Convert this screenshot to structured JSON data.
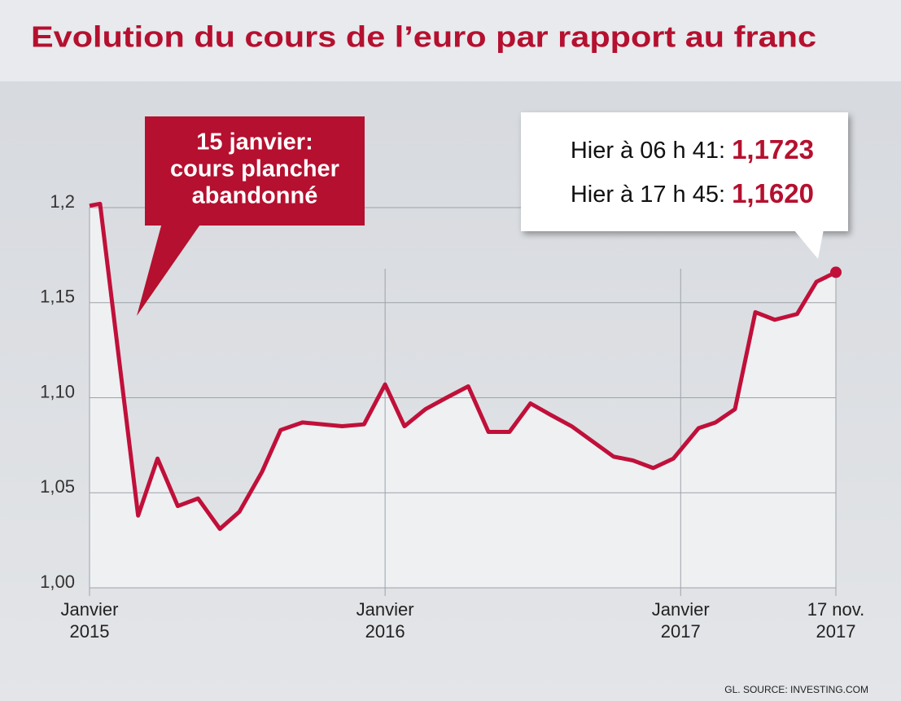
{
  "chart_data": {
    "type": "line",
    "title": "Evolution du cours de l’euro par rapport au franc",
    "annotation": [
      "15 janvier:",
      "cours plancher",
      "abandonné"
    ],
    "info": [
      {
        "label": "Hier à 06 h 41:",
        "value": "1,1723"
      },
      {
        "label": "Hier à 17 h 45:",
        "value": "1,1620"
      }
    ],
    "source": "GL. SOURCE: INVESTING.COM",
    "x": [
      "2015-01-01",
      "2015-01-14",
      "2015-03-02",
      "2015-03-26",
      "2015-04-20",
      "2015-05-15",
      "2015-06-11",
      "2015-07-05",
      "2015-08-02",
      "2015-08-25",
      "2015-09-21",
      "2015-11-09",
      "2015-12-06",
      "2016-01-01",
      "2016-01-25",
      "2016-02-20",
      "2016-03-17",
      "2016-04-13",
      "2016-05-08",
      "2016-06-03",
      "2016-06-29",
      "2016-07-24",
      "2016-08-19",
      "2016-10-10",
      "2016-11-03",
      "2016-11-28",
      "2016-12-23",
      "2017-02-07",
      "2017-03-14",
      "2017-04-23",
      "2017-06-04",
      "2017-07-14",
      "2017-08-29",
      "2017-10-08",
      "2017-11-17"
    ],
    "series": [
      {
        "color": "#c0103a",
        "values": [
          1.201,
          1.202,
          1.038,
          1.068,
          1.043,
          1.047,
          1.031,
          1.04,
          1.061,
          1.083,
          1.087,
          1.085,
          1.086,
          1.107,
          1.085,
          1.094,
          1.1,
          1.106,
          1.082,
          1.082,
          1.097,
          1.091,
          1.085,
          1.069,
          1.067,
          1.063,
          1.068,
          1.084,
          1.087,
          1.094,
          1.145,
          1.141,
          1.144,
          1.161,
          1.166
        ]
      }
    ],
    "ylim": [
      1.0,
      1.2
    ],
    "yticks": [
      {
        "value": 1.0,
        "label": "1,00"
      },
      {
        "value": 1.05,
        "label": "1,05"
      },
      {
        "value": 1.1,
        "label": "1,10"
      },
      {
        "value": 1.15,
        "label": "1,15"
      },
      {
        "value": 1.2,
        "label": "1,2"
      }
    ],
    "xticks": [
      {
        "value": "2015-01-01",
        "label": "Janvier 2015"
      },
      {
        "value": "2016-01-01",
        "label": "Janvier 2016"
      },
      {
        "value": "2017-01-01",
        "label": "Janvier 2017"
      },
      {
        "value": "2017-11-17",
        "label": "17 nov. 2017"
      }
    ],
    "grid": true
  }
}
